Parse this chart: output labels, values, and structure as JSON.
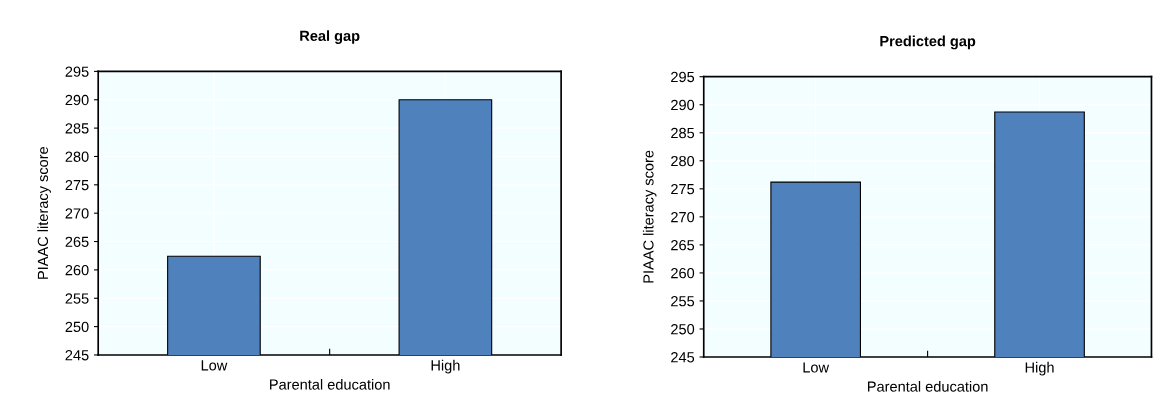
{
  "chart_data": [
    {
      "type": "bar",
      "title": "Real gap",
      "xlabel": "Parental education",
      "ylabel": "PIAAC literacy score",
      "categories": [
        "Low",
        "High"
      ],
      "values": [
        262.4,
        290.0
      ],
      "color": "#4f81bd",
      "ylim": [
        245,
        295
      ],
      "yticks": [
        245,
        250,
        255,
        260,
        265,
        270,
        275,
        280,
        285,
        290,
        295
      ],
      "grid": true
    },
    {
      "type": "bar",
      "title": "Predicted gap",
      "xlabel": "Parental education",
      "ylabel": "PIAAC literacy score",
      "categories": [
        "Low",
        "High"
      ],
      "values": [
        276.2,
        288.7
      ],
      "color": "#4f81bd",
      "ylim": [
        245,
        295
      ],
      "yticks": [
        245,
        250,
        255,
        260,
        265,
        270,
        275,
        280,
        285,
        290,
        295
      ],
      "grid": true
    }
  ]
}
